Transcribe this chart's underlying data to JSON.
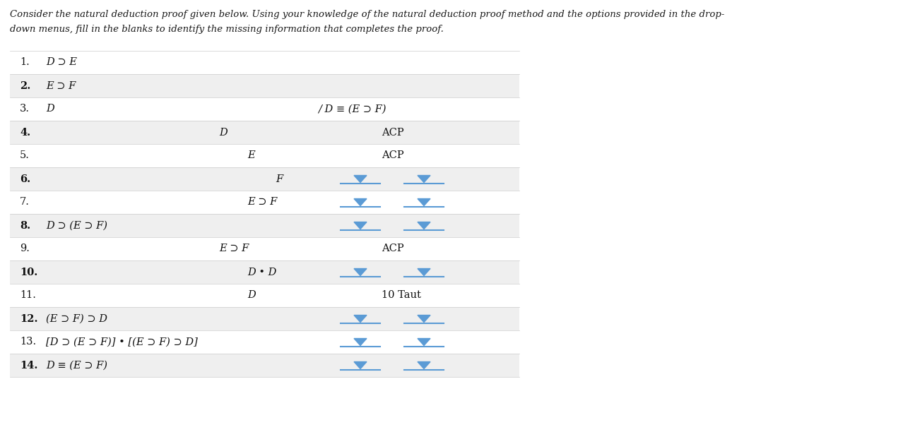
{
  "title_line1": "Consider the natural deduction proof given below. Using your knowledge of the natural deduction proof method and the options provided in the drop-",
  "title_line2": "down menus, fill in the blanks to identify the missing information that completes the proof.",
  "background_color": "#ffffff",
  "rows": [
    {
      "num": "1.",
      "formula": "D ⊃ E",
      "mid_formula": "",
      "right_formula": "",
      "right_label": "",
      "shaded": false,
      "has_dropdowns": false
    },
    {
      "num": "2.",
      "formula": "E ⊃ F",
      "mid_formula": "",
      "right_formula": "",
      "right_label": "",
      "shaded": true,
      "has_dropdowns": false
    },
    {
      "num": "3.",
      "formula": "D",
      "mid_formula": "",
      "right_formula": "/ D ≡ (E ⊃ F)",
      "right_label": "",
      "shaded": false,
      "has_dropdowns": false
    },
    {
      "num": "4.",
      "formula": "",
      "mid_formula": "D",
      "mid_indent": 1,
      "right_formula": "ACP",
      "right_label": "",
      "shaded": true,
      "has_dropdowns": false
    },
    {
      "num": "5.",
      "formula": "",
      "mid_formula": "E",
      "mid_indent": 2,
      "right_formula": "ACP",
      "right_label": "",
      "shaded": false,
      "has_dropdowns": false
    },
    {
      "num": "6.",
      "formula": "",
      "mid_formula": "F",
      "mid_indent": 3,
      "right_formula": "",
      "right_label": "",
      "shaded": true,
      "has_dropdowns": true
    },
    {
      "num": "7.",
      "formula": "",
      "mid_formula": "E ⊃ F",
      "mid_indent": 2,
      "right_formula": "",
      "right_label": "",
      "shaded": false,
      "has_dropdowns": true
    },
    {
      "num": "8.",
      "formula": "D ⊃ (E ⊃ F)",
      "mid_formula": "",
      "mid_indent": 0,
      "right_formula": "",
      "right_label": "",
      "shaded": true,
      "has_dropdowns": true
    },
    {
      "num": "9.",
      "formula": "",
      "mid_formula": "E ⊃ F",
      "mid_indent": 1,
      "right_formula": "ACP",
      "right_label": "",
      "shaded": false,
      "has_dropdowns": false
    },
    {
      "num": "10.",
      "formula": "",
      "mid_formula": "D • D",
      "mid_indent": 2,
      "right_formula": "",
      "right_label": "",
      "shaded": true,
      "has_dropdowns": true
    },
    {
      "num": "11.",
      "formula": "",
      "mid_formula": "D",
      "mid_indent": 2,
      "right_formula": "10 Taut",
      "right_label": "",
      "shaded": false,
      "has_dropdowns": false
    },
    {
      "num": "12.",
      "formula": "(E ⊃ F) ⊃ D",
      "mid_formula": "",
      "mid_indent": 0,
      "right_formula": "",
      "right_label": "",
      "shaded": true,
      "has_dropdowns": true
    },
    {
      "num": "13.",
      "formula": "[D ⊃ (E ⊃ F)] • [(E ⊃ F) ⊃ D]",
      "mid_formula": "",
      "mid_indent": 0,
      "right_formula": "",
      "right_label": "",
      "shaded": false,
      "has_dropdowns": true
    },
    {
      "num": "14.",
      "formula": "D ≡ (E ⊃ F)",
      "mid_formula": "",
      "mid_indent": 0,
      "right_formula": "",
      "right_label": "",
      "shaded": true,
      "has_dropdowns": true
    }
  ],
  "shaded_color": "#efefef",
  "white_color": "#ffffff",
  "dropdown_color": "#5b9bd5",
  "font_size": 10.5,
  "header_font_size": 9.5,
  "num_fontsize": 10.5
}
